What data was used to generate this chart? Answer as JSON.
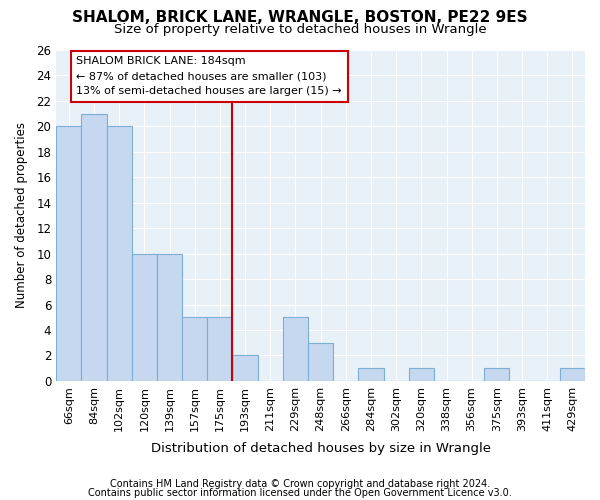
{
  "title1": "SHALOM, BRICK LANE, WRANGLE, BOSTON, PE22 9ES",
  "title2": "Size of property relative to detached houses in Wrangle",
  "xlabel": "Distribution of detached houses by size in Wrangle",
  "ylabel": "Number of detached properties",
  "categories": [
    "66sqm",
    "84sqm",
    "102sqm",
    "120sqm",
    "139sqm",
    "157sqm",
    "175sqm",
    "193sqm",
    "211sqm",
    "229sqm",
    "248sqm",
    "266sqm",
    "284sqm",
    "302sqm",
    "320sqm",
    "338sqm",
    "356sqm",
    "375sqm",
    "393sqm",
    "411sqm",
    "429sqm"
  ],
  "values": [
    20,
    21,
    20,
    10,
    10,
    5,
    5,
    2,
    0,
    5,
    3,
    0,
    1,
    0,
    1,
    0,
    0,
    1,
    0,
    0,
    1
  ],
  "bar_color": "#c5d8f0",
  "bar_edge_color": "#7bafd4",
  "background_color": "#e8f0f8",
  "grid_color": "#ffffff",
  "vline_color": "#cc0000",
  "annotation_text_line1": "SHALOM BRICK LANE: 184sqm",
  "annotation_text_line2": "← 87% of detached houses are smaller (103)",
  "annotation_text_line3": "13% of semi-detached houses are larger (15) →",
  "annotation_box_color": "#cc0000",
  "ylim": [
    0,
    26
  ],
  "yticks": [
    0,
    2,
    4,
    6,
    8,
    10,
    12,
    14,
    16,
    18,
    20,
    22,
    24,
    26
  ],
  "footer1": "Contains HM Land Registry data © Crown copyright and database right 2024.",
  "footer2": "Contains public sector information licensed under the Open Government Licence v3.0."
}
